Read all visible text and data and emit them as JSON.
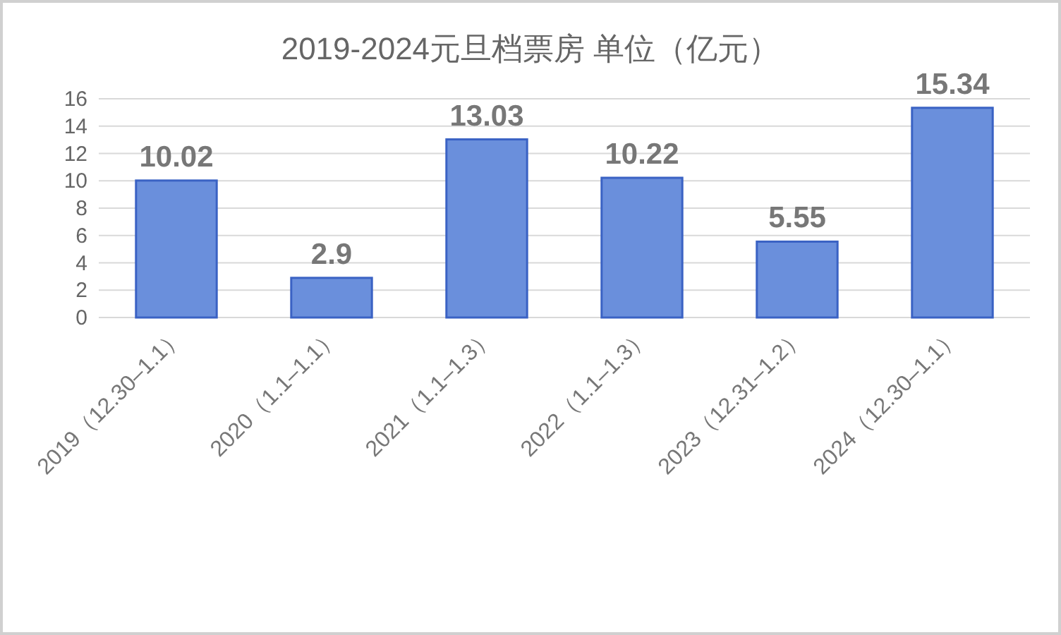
{
  "chart_data": {
    "type": "bar",
    "title": "2019-2024元旦档票房 单位（亿元）",
    "categories": [
      "2019（12.30–1.1）",
      "2020（1.1–1.1）",
      "2021（1.1–1.3）",
      "2022（1.1–1.3）",
      "2023（12.31–1.2）",
      "2024（12.30–1.1）"
    ],
    "values": [
      10.02,
      2.9,
      13.03,
      10.22,
      5.55,
      15.34
    ],
    "color": "#6a8fdc",
    "ylim": [
      0,
      16
    ],
    "yticks": [
      0,
      2,
      4,
      6,
      8,
      10,
      12,
      14,
      16
    ],
    "grid": "y",
    "data_labels": true
  }
}
